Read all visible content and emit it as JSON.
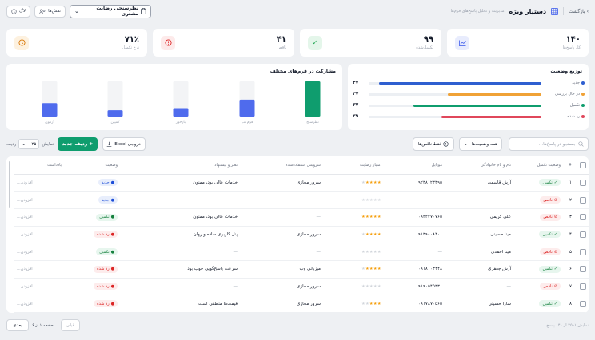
{
  "header": {
    "back_label": "بازگشت",
    "app_title": "دستیار ویژه",
    "app_subtitle": "مدیریت و تحلیل پاسخ‌های فرم‌ها",
    "survey_select": "نظرسنجی رضایت مشتری",
    "roles_label": "نقش‌ها",
    "log_label": "لاگ"
  },
  "stats": [
    {
      "label": "کل پاسخ‌ها",
      "value": "۱۴۰",
      "icon": "chart-line-icon",
      "color": "#4f6bed",
      "bg": "#e8ecfd"
    },
    {
      "label": "تکمیل‌شده",
      "value": "۹۹",
      "icon": "check-icon",
      "color": "#16a34a",
      "bg": "#e4f6ea"
    },
    {
      "label": "ناقص",
      "value": "۴۱",
      "icon": "alert-icon",
      "color": "#dc2626",
      "bg": "#fdeaea"
    },
    {
      "label": "نرخ تکمیل",
      "value": "۷۱٪",
      "icon": "clock-icon",
      "color": "#d97706",
      "bg": "#fdf1df"
    }
  ],
  "distribution": {
    "title": "توزیع وضعیت",
    "items": [
      {
        "label": "جدید",
        "count": "۴۷",
        "value": 47,
        "color": "#2f5fd0"
      },
      {
        "label": "در حال بررسی",
        "count": "۲۷",
        "value": 27,
        "color": "#f0a236"
      },
      {
        "label": "تکمیل",
        "count": "۳۷",
        "value": 37,
        "color": "#0f9d6e"
      },
      {
        "label": "رد شده",
        "count": "۲۹",
        "value": 29,
        "color": "#e0475b"
      }
    ]
  },
  "chart_data": {
    "type": "bar",
    "title": "مشارکت در فرم‌های مختلف",
    "categories": [
      "نظرسنج",
      "فرم ثب",
      "بازخور",
      "کمپین",
      "آزمون"
    ],
    "values": [
      100,
      48,
      24,
      18,
      38
    ],
    "ylim": [
      0,
      100
    ],
    "colors": [
      "#0f9d6e",
      "#4f6bed",
      "#4f6bed",
      "#4f6bed",
      "#4f6bed"
    ],
    "grid": false
  },
  "filters": {
    "search_placeholder": "جستجو در پاسخ‌ها...",
    "status_filter": "همه وضعیت‌ها",
    "incomplete_only": "فقط ناقص‌ها",
    "export_label": "خروجی Excel",
    "new_label": "ردیف جدید",
    "perpage_label": "نمایش",
    "perpage_suffix": "ردیف",
    "perpage_value": "۲۵"
  },
  "table": {
    "columns": [
      "#",
      "وضعیت تکمیل",
      "نام و نام خانوادگی",
      "موبایل",
      "امتیاز رضایت",
      "سرویس استفاده‌شده",
      "نظر و پیشنهاد",
      "وضعیت",
      "یادداشت"
    ],
    "rows": [
      {
        "num": "۱",
        "completion": "تکمیل",
        "completion_type": "complete",
        "name": "آرش قاسمی",
        "mobile": "۰۹۲۳۸۱۲۳۳۹۵",
        "rating": 4,
        "service": "سرور مجازی",
        "comment": "خدمات عالی بود، ممنون",
        "status": "جدید",
        "status_type": "new",
        "note": "افزودن..."
      },
      {
        "num": "۲",
        "completion": "ناقص",
        "completion_type": "incomplete",
        "name": "—",
        "mobile": "—",
        "rating": 0,
        "service": "—",
        "comment": "—",
        "status": "جدید",
        "status_type": "new",
        "note": "افزودن..."
      },
      {
        "num": "۳",
        "completion": "ناقص",
        "completion_type": "incomplete",
        "name": "علی کریمی",
        "mobile": "۰۹۲۲۲۷۰۷۶۵",
        "rating": 5,
        "service": "—",
        "comment": "خدمات عالی بود، ممنون",
        "status": "تکمیل",
        "status_type": "complete",
        "note": "افزودن..."
      },
      {
        "num": "۴",
        "completion": "تکمیل",
        "completion_type": "complete",
        "name": "مینا حسینی",
        "mobile": "۰۹۱۳۹۸۰۸۴۰۱",
        "rating": 4,
        "service": "سرور مجازی",
        "comment": "پنل کاربری ساده و روان",
        "status": "رد شده",
        "status_type": "rejected",
        "note": "افزودن..."
      },
      {
        "num": "۵",
        "completion": "ناقص",
        "completion_type": "incomplete",
        "name": "مینا احمدی",
        "mobile": "—",
        "rating": 0,
        "service": "—",
        "comment": "—",
        "status": "تکمیل",
        "status_type": "complete",
        "note": "افزودن..."
      },
      {
        "num": "۶",
        "completion": "تکمیل",
        "completion_type": "complete",
        "name": "آرش جعفری",
        "mobile": "۰۹۱۸۱۰۳۴۴۸",
        "rating": 4,
        "service": "میزبانی وب",
        "comment": "سرعت پاسخ‌گویی خوب بود",
        "status": "رد شده",
        "status_type": "rejected",
        "note": "افزودن..."
      },
      {
        "num": "۷",
        "completion": "ناقص",
        "completion_type": "incomplete",
        "name": "—",
        "mobile": "۰۹۱۹۰۵۴۵۳۳۱",
        "rating": 0,
        "service": "سرور مجازی",
        "comment": "—",
        "status": "رد شده",
        "status_type": "rejected",
        "note": "افزودن..."
      },
      {
        "num": "۸",
        "completion": "تکمیل",
        "completion_type": "complete",
        "name": "سارا حسینی",
        "mobile": "۰۹۱۷۸۷۰۵۶۵",
        "rating": 3,
        "service": "سرور مجازی",
        "comment": "قیمت‌ها منطقی است",
        "status": "رد شده",
        "status_type": "rejected",
        "note": "افزودن..."
      }
    ]
  },
  "footer": {
    "showing": "نمایش ۱–۲۵ از ۱۴۰ پاسخ",
    "page_info": "صفحه ۱ از ۶",
    "prev_label": "قبلی",
    "next_label": "بعدی"
  }
}
